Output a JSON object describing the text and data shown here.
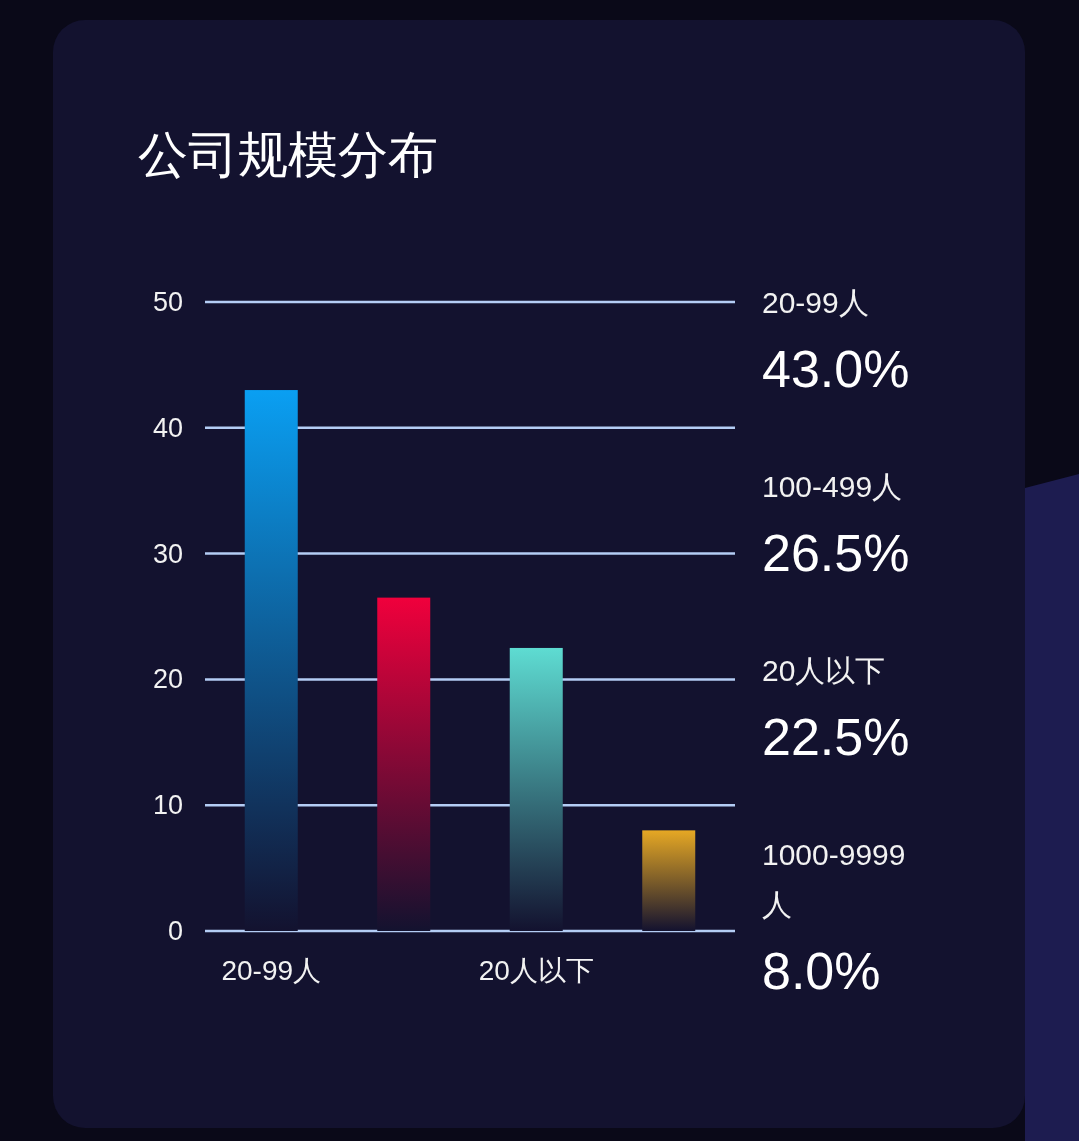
{
  "chart_data": {
    "type": "bar",
    "title": "公司规模分布",
    "categories": [
      "20-99人",
      null,
      "20人以下",
      null
    ],
    "values": [
      43.0,
      26.5,
      22.5,
      8.0
    ],
    "colors": [
      "#0a9ff2",
      "#f0003c",
      "#5edcd2",
      "#e6a824"
    ],
    "ylim": [
      0,
      50
    ],
    "yticks": [
      0,
      10,
      20,
      30,
      40,
      50
    ],
    "grid": "y",
    "annotations": [
      "20-99人",
      "43.0%",
      "100-499人",
      "26.5%",
      "20人以下",
      "22.5%",
      "1000-9999人",
      "8.0%"
    ]
  }
}
